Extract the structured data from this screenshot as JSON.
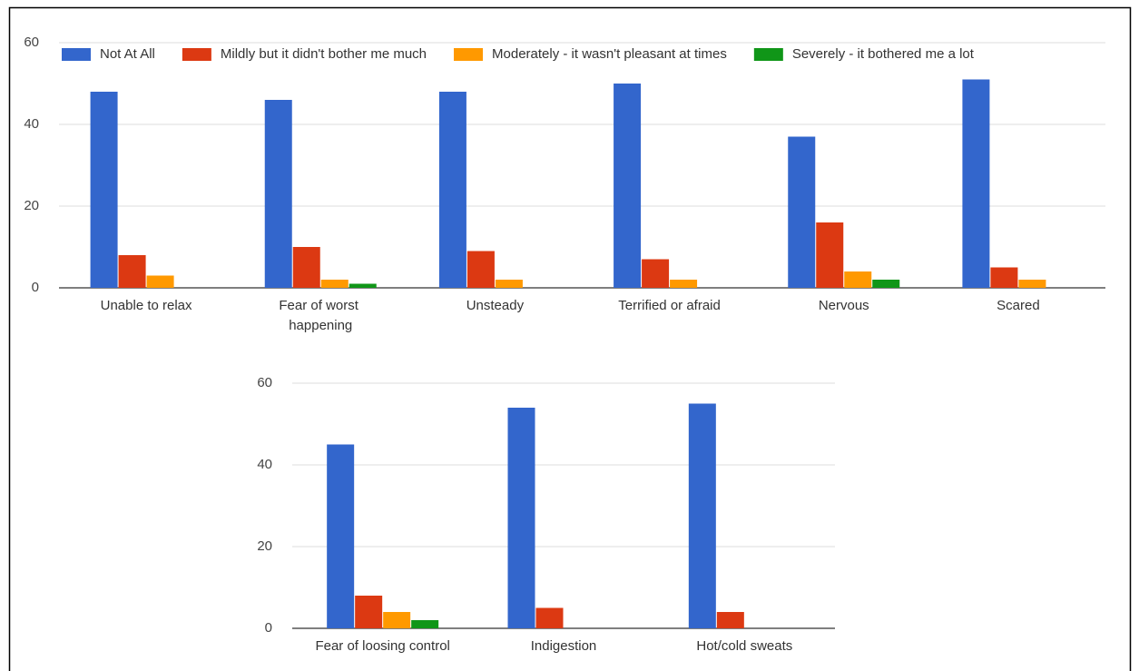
{
  "chart_data": [
    {
      "type": "bar",
      "legend": "top",
      "categories": [
        "Unable to relax",
        "Fear of worst happening",
        "Unsteady",
        "Terrified or afraid",
        "Nervous",
        "Scared"
      ],
      "series": [
        {
          "name": "Not At All",
          "color": "#3366cc",
          "values": [
            48,
            46,
            48,
            50,
            37,
            51
          ]
        },
        {
          "name": "Mildly but it didn't bother me much",
          "color": "#dc3912",
          "values": [
            8,
            10,
            9,
            7,
            16,
            5
          ]
        },
        {
          "name": "Moderately - it wasn't pleasant at times",
          "color": "#ff9900",
          "values": [
            3,
            2,
            2,
            2,
            4,
            2
          ]
        },
        {
          "name": "Severely - it bothered me a lot",
          "color": "#109618",
          "values": [
            0,
            1,
            0,
            0,
            2,
            0
          ]
        }
      ],
      "ylim": [
        0,
        60
      ],
      "yticks": [
        0,
        20,
        40,
        60
      ],
      "grid": true
    },
    {
      "type": "bar",
      "legend": "none",
      "categories": [
        "Fear of loosing control",
        "Indigestion",
        "Hot/cold sweats"
      ],
      "series": [
        {
          "color": "#3366cc",
          "values": [
            45,
            54,
            55
          ]
        },
        {
          "color": "#dc3912",
          "values": [
            8,
            5,
            4
          ]
        },
        {
          "color": "#ff9900",
          "values": [
            4,
            0,
            0
          ]
        },
        {
          "color": "#109618",
          "values": [
            2,
            0,
            0
          ]
        }
      ],
      "ylim": [
        0,
        60
      ],
      "yticks": [
        0,
        20,
        40,
        60
      ],
      "grid": true
    }
  ]
}
